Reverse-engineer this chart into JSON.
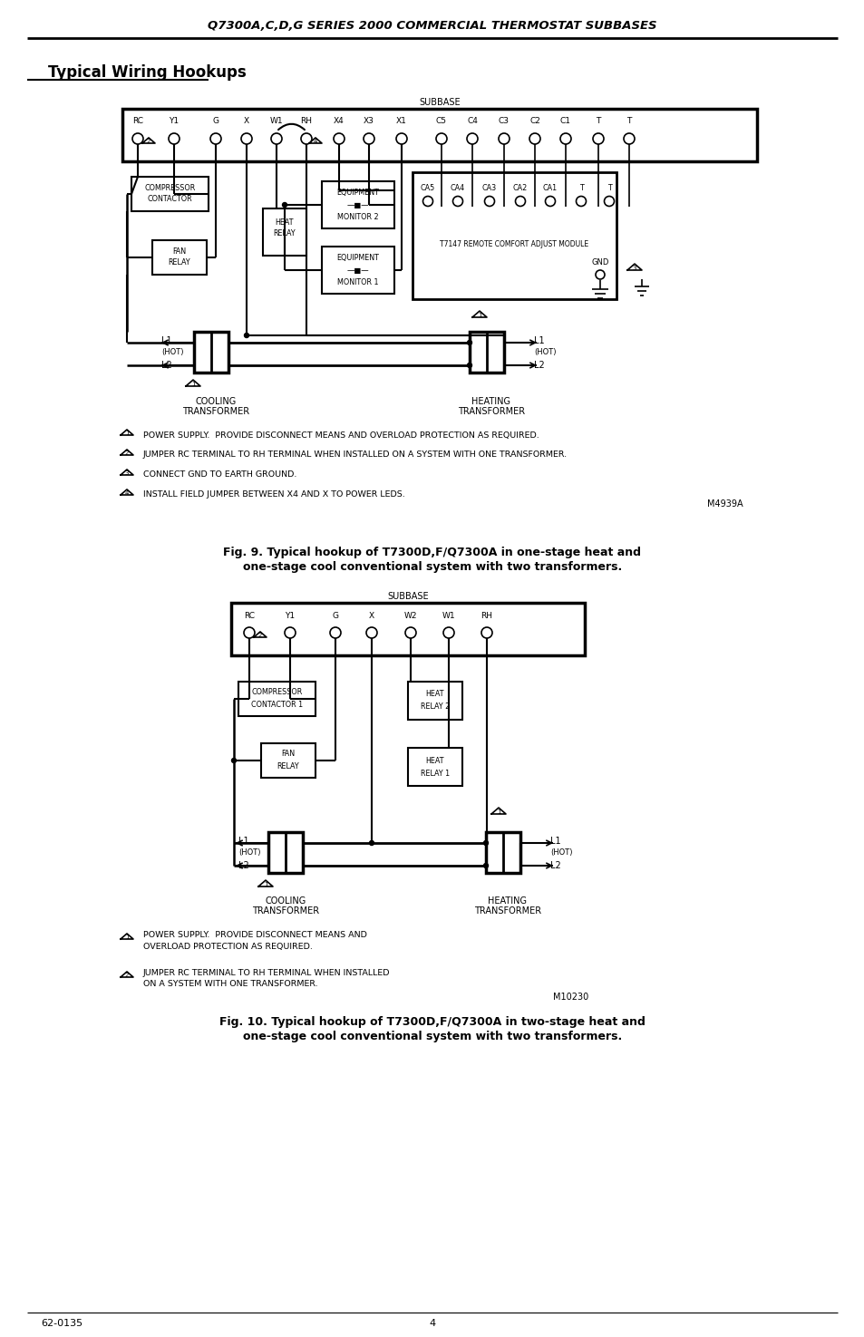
{
  "page_title": "Q7300A,C,D,G SERIES 2000 COMMERCIAL THERMOSTAT SUBBASES",
  "section_title": "Typical Wiring Hookups",
  "fig9_caption_line1": "Fig. 9. Typical hookup of T7300D,F/Q7300A in one-stage heat and",
  "fig9_caption_line2": "one-stage cool conventional system with two transformers.",
  "fig10_caption_line1": "Fig. 10. Typical hookup of T7300D,F/Q7300A in two-stage heat and",
  "fig10_caption_line2": "one-stage cool conventional system with two transformers.",
  "footer_left": "62-0135",
  "footer_center": "4",
  "bg_color": "#ffffff",
  "line_color": "#000000",
  "diagram1_model_num": "M4939A",
  "diagram2_model_num": "M10230",
  "notes1": [
    "POWER SUPPLY.  PROVIDE DISCONNECT MEANS AND OVERLOAD PROTECTION AS REQUIRED.",
    "JUMPER RC TERMINAL TO RH TERMINAL WHEN INSTALLED ON A SYSTEM WITH ONE TRANSFORMER.",
    "CONNECT GND TO EARTH GROUND.",
    "INSTALL FIELD JUMPER BETWEEN X4 AND X TO POWER LEDS."
  ],
  "notes2_line1": [
    "POWER SUPPLY.  PROVIDE DISCONNECT MEANS AND",
    "JUMPER RC TERMINAL TO RH TERMINAL WHEN INSTALLED"
  ],
  "notes2_line2": [
    "OVERLOAD PROTECTION AS REQUIRED.",
    "ON A SYSTEM WITH ONE TRANSFORMER."
  ]
}
